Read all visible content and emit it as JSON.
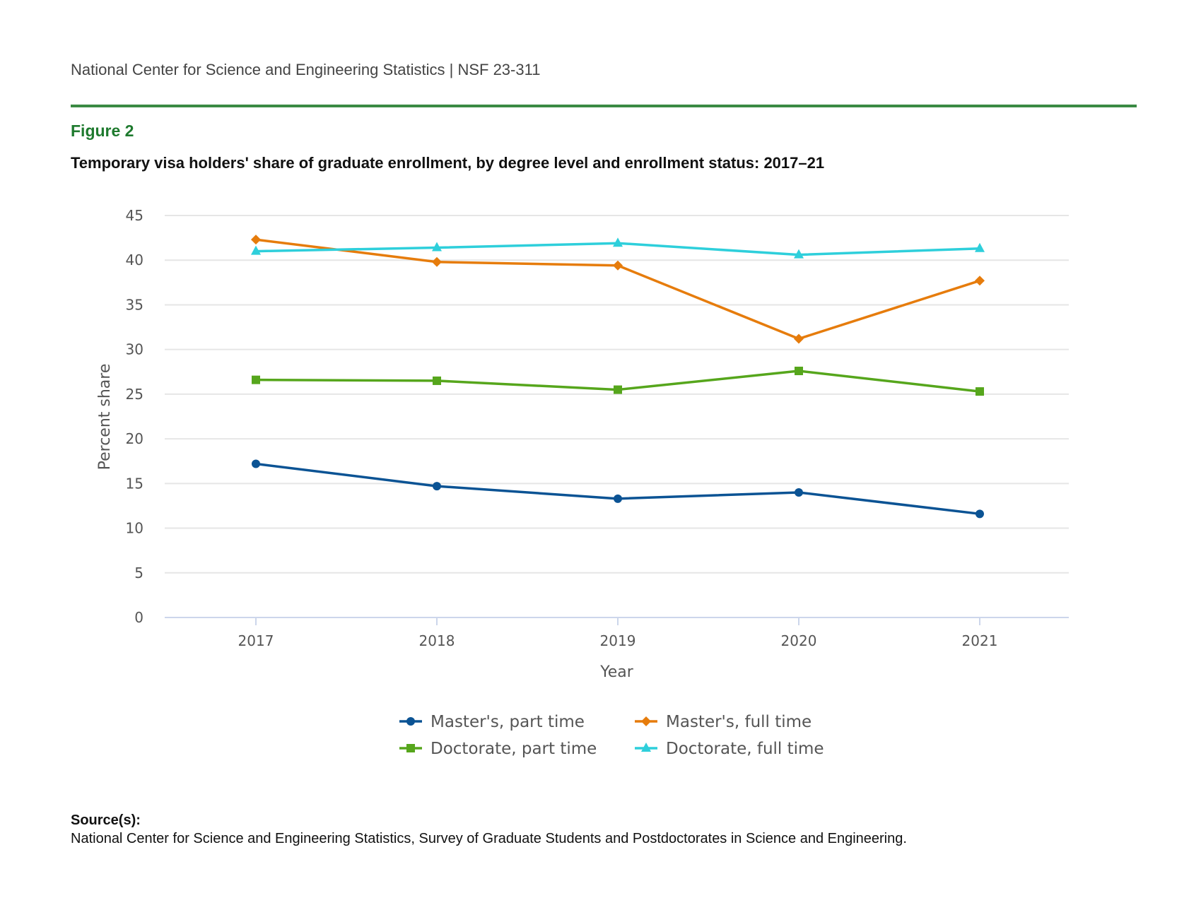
{
  "header": {
    "text": "National Center for Science and Engineering Statistics  |  NSF 23-311"
  },
  "figure_label": "Figure 2",
  "source": {
    "heading": "Source(s):",
    "text": "National Center for Science and Engineering Statistics, Survey of Graduate Students and Postdoctorates in Science and Engineering."
  },
  "chart_data": {
    "type": "line",
    "title": "Temporary visa holders' share of graduate enrollment, by degree level and enrollment status: 2017–21",
    "xlabel": "Year",
    "ylabel": "Percent share",
    "x": [
      "2017",
      "2018",
      "2019",
      "2020",
      "2021"
    ],
    "ylim": [
      0,
      45
    ],
    "yticks": [
      0,
      5,
      10,
      15,
      20,
      25,
      30,
      35,
      40,
      45
    ],
    "grid": true,
    "legend_position": "bottom",
    "series": [
      {
        "name": "Master's, part time",
        "color": "#0b5394",
        "marker": "circle",
        "values": [
          17.2,
          14.7,
          13.3,
          14.0,
          11.6
        ]
      },
      {
        "name": "Master's, full time",
        "color": "#e67c0c",
        "marker": "diamond",
        "values": [
          42.3,
          39.8,
          39.4,
          31.2,
          37.7
        ]
      },
      {
        "name": "Doctorate, part time",
        "color": "#56a61c",
        "marker": "square",
        "values": [
          26.6,
          26.5,
          25.5,
          27.6,
          25.3
        ]
      },
      {
        "name": "Doctorate, full time",
        "color": "#2ecfdb",
        "marker": "triangle",
        "values": [
          41.0,
          41.4,
          41.9,
          40.6,
          41.3
        ]
      }
    ]
  }
}
